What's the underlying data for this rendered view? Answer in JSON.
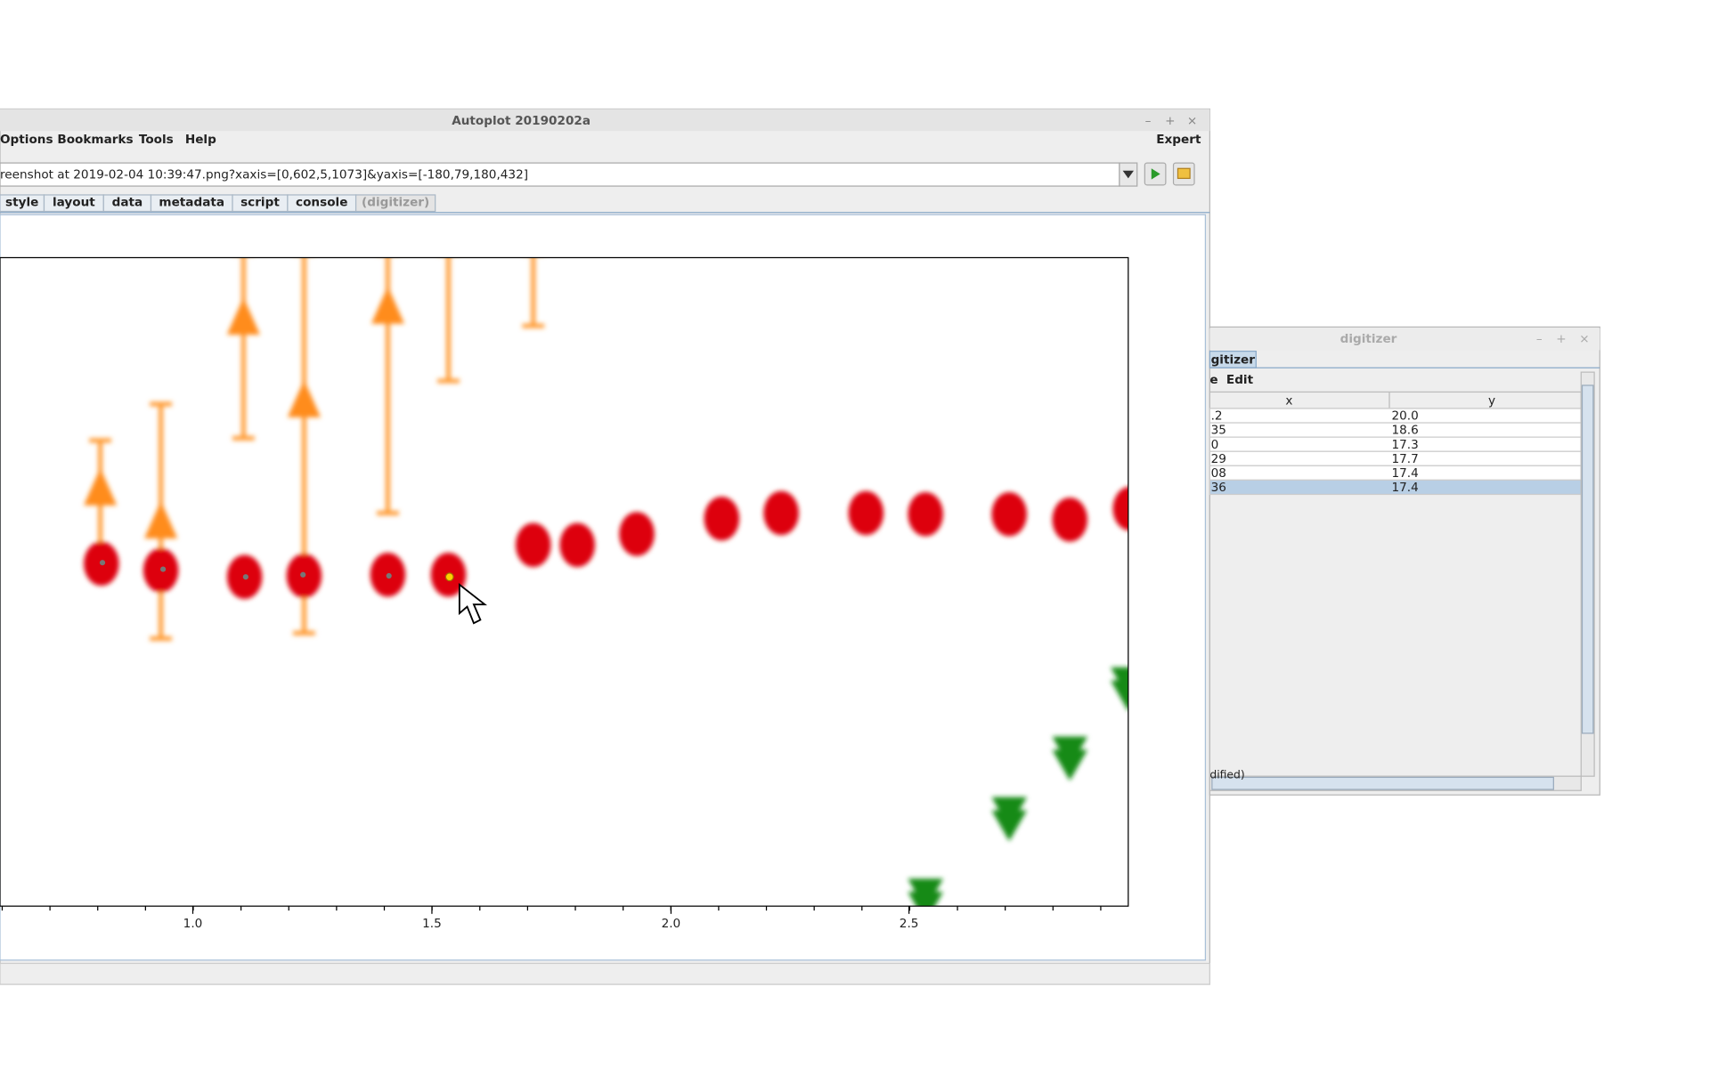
{
  "main_window": {
    "title": "Autoplot 20190202a",
    "menu": [
      "Options",
      "Bookmarks",
      "Tools",
      "Help"
    ],
    "expert": "Expert",
    "url": "reenshot at 2019-02-04 10:39:47.png?xaxis=[0,602,5,1073]&yaxis=[-180,79,180,432]",
    "tabs": [
      "style",
      "layout",
      "data",
      "metadata",
      "script",
      "console",
      "(digitizer)"
    ],
    "x_ticks": [
      "1.0",
      "1.5",
      "2.0",
      "2.5"
    ]
  },
  "digitizer": {
    "title": "digitizer",
    "tab": "gitizer",
    "menu": [
      "e",
      "Edit"
    ],
    "columns": [
      "x",
      "y"
    ],
    "rows": [
      [
        ".2",
        "20.0"
      ],
      [
        "35",
        "18.6"
      ],
      [
        "0",
        "17.3"
      ],
      [
        "29",
        "17.7"
      ],
      [
        "08",
        "17.4"
      ],
      [
        "36",
        "17.4"
      ]
    ],
    "status": "dified)"
  }
}
